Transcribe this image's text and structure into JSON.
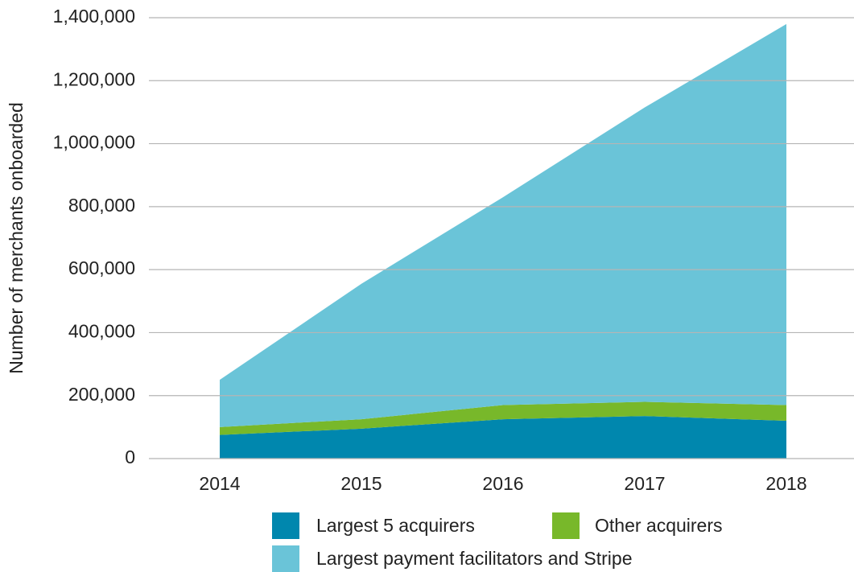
{
  "chart_data": {
    "type": "stacked_area",
    "y_label": "Number of merchants onboarded",
    "categories": [
      "2014",
      "2015",
      "2016",
      "2017",
      "2018"
    ],
    "series": [
      {
        "name": "Largest 5 acquirers",
        "color": "#0087ae",
        "values": [
          75000,
          95000,
          125000,
          135000,
          120000
        ]
      },
      {
        "name": "Other acquirers",
        "color": "#78b82a",
        "values": [
          25000,
          30000,
          45000,
          45000,
          50000
        ]
      },
      {
        "name": "Largest payment facilitators and Stripe",
        "color": "#6ac4d8",
        "values": [
          150000,
          430000,
          660000,
          935000,
          1210000
        ]
      }
    ],
    "ylim": [
      0,
      1400000
    ],
    "yticks": [
      0,
      {
        "value": 200000,
        "label": "200,000"
      },
      {
        "value": 400000,
        "label": "400,000"
      },
      {
        "value": 600000,
        "label": "600,000"
      },
      {
        "value": 800000,
        "label": "800,000"
      },
      {
        "value": 1000000,
        "label": "1,000,000"
      },
      {
        "value": 1200000,
        "label": "1,200,000"
      },
      {
        "value": 1400000,
        "label": "1,400,000"
      }
    ],
    "grid": true
  }
}
